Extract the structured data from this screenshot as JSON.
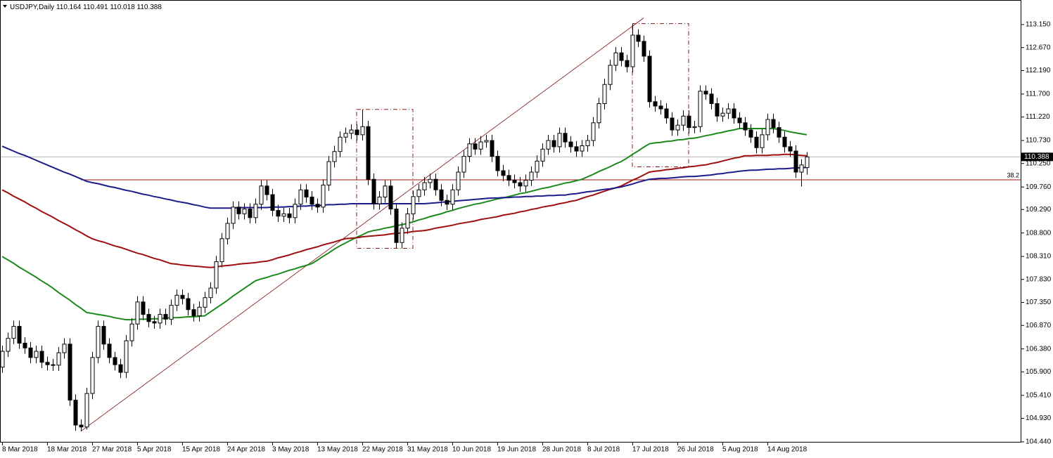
{
  "chart_data": {
    "type": "candlestick",
    "symbol": "USDJPY,Daily",
    "categories": [
      "8 Mar 2018",
      null,
      null,
      null,
      null,
      null,
      null,
      null,
      "18 Mar 2018",
      null,
      null,
      null,
      null,
      null,
      null,
      null,
      "27 Mar 2018",
      null,
      null,
      null,
      null,
      null,
      null,
      null,
      "5 Apr 2018",
      null,
      null,
      null,
      null,
      null,
      null,
      null,
      "15 Apr 2018",
      null,
      null,
      null,
      null,
      null,
      null,
      null,
      "24 Apr 2018",
      null,
      null,
      null,
      null,
      null,
      null,
      null,
      "3 May 2018",
      null,
      null,
      null,
      null,
      null,
      null,
      null,
      "13 May 2018",
      null,
      null,
      null,
      null,
      null,
      null,
      null,
      "22 May 2018",
      null,
      null,
      null,
      null,
      null,
      null,
      null,
      "31 May 2018",
      null,
      null,
      null,
      null,
      null,
      null,
      null,
      "10 Jun 2018",
      null,
      null,
      null,
      null,
      null,
      null,
      null,
      "19 Jun 2018",
      null,
      null,
      null,
      null,
      null,
      null,
      null,
      "28 Jun 2018",
      null,
      null,
      null,
      null,
      null,
      null,
      null,
      "8 Jul 2018",
      null,
      null,
      null,
      null,
      null,
      null,
      null,
      "17 Jul 2018",
      null,
      null,
      null,
      null,
      null,
      null,
      null,
      "26 Jul 2018",
      null,
      null,
      null,
      null,
      null,
      null,
      null,
      "5 Aug 2018",
      null,
      null,
      null,
      null,
      null,
      null,
      null,
      "14 Aug 2018",
      null,
      null,
      null,
      null,
      null,
      null,
      null
    ],
    "open": [
      106.0,
      106.33,
      106.6,
      106.85,
      106.5,
      106.4,
      106.2,
      106.33,
      106.1,
      106.05,
      106.04,
      106.3,
      106.48,
      105.31,
      104.79,
      104.75,
      105.45,
      106.2,
      106.85,
      106.48,
      106.2,
      106.05,
      105.89,
      106.55,
      106.9,
      107.36,
      107.1,
      106.95,
      106.92,
      107.1,
      107.0,
      107.29,
      107.5,
      107.43,
      107.2,
      107.07,
      107.25,
      107.45,
      107.65,
      108.2,
      108.68,
      109.0,
      109.34,
      109.2,
      109.3,
      109.12,
      109.4,
      109.78,
      109.6,
      109.27,
      109.15,
      109.2,
      109.12,
      109.4,
      109.7,
      109.55,
      109.4,
      109.34,
      109.8,
      110.29,
      110.5,
      110.8,
      110.88,
      110.95,
      110.85,
      111.02,
      109.92,
      109.41,
      109.55,
      109.78,
      109.3,
      108.6,
      108.9,
      109.2,
      109.56,
      109.7,
      109.85,
      109.92,
      109.7,
      109.48,
      109.4,
      109.7,
      110.07,
      110.4,
      110.66,
      110.55,
      110.7,
      110.73,
      110.4,
      110.1,
      110.0,
      109.9,
      109.85,
      109.78,
      109.9,
      110.07,
      110.3,
      110.55,
      110.73,
      110.6,
      110.88,
      110.7,
      110.6,
      110.51,
      110.62,
      110.73,
      111.1,
      111.5,
      111.9,
      112.3,
      112.56,
      112.4,
      112.27,
      112.93,
      112.8,
      112.49,
      111.54,
      111.45,
      111.39,
      111.2,
      110.95,
      111.05,
      111.24,
      111.0,
      111.02,
      111.76,
      111.7,
      111.5,
      111.24,
      111.3,
      111.39,
      111.2,
      111.1,
      110.95,
      110.8,
      110.58,
      110.85,
      111.17,
      111.0,
      110.8,
      110.6,
      110.51,
      110.07,
      110.164
    ],
    "high": [
      106.45,
      106.72,
      106.97,
      106.97,
      106.62,
      106.52,
      106.45,
      106.45,
      106.22,
      106.17,
      106.42,
      106.6,
      106.6,
      105.43,
      104.91,
      105.57,
      106.32,
      106.97,
      106.97,
      106.6,
      106.32,
      106.17,
      106.67,
      107.02,
      107.48,
      107.48,
      107.22,
      107.07,
      107.22,
      107.22,
      107.41,
      107.62,
      107.62,
      107.55,
      107.32,
      107.37,
      107.57,
      107.77,
      108.32,
      108.8,
      109.12,
      109.46,
      109.46,
      109.42,
      109.42,
      109.52,
      109.9,
      109.9,
      109.72,
      109.39,
      109.32,
      109.32,
      109.52,
      109.82,
      109.82,
      109.67,
      109.52,
      109.92,
      110.41,
      110.62,
      110.92,
      111.0,
      111.07,
      111.07,
      111.38,
      111.14,
      110.04,
      109.67,
      109.9,
      109.9,
      109.42,
      109.02,
      109.32,
      109.68,
      109.82,
      109.97,
      110.04,
      110.04,
      109.82,
      109.6,
      109.82,
      110.19,
      110.52,
      110.78,
      110.78,
      110.82,
      110.85,
      110.85,
      110.52,
      110.22,
      110.12,
      110.02,
      109.97,
      110.02,
      110.19,
      110.42,
      110.67,
      110.85,
      110.85,
      111.0,
      111.0,
      110.82,
      110.72,
      110.74,
      110.85,
      111.22,
      111.62,
      112.02,
      112.42,
      112.68,
      112.68,
      112.52,
      113.17,
      113.05,
      112.92,
      112.61,
      111.66,
      111.57,
      111.51,
      111.32,
      111.17,
      111.36,
      111.36,
      111.14,
      111.88,
      111.88,
      111.82,
      111.62,
      111.42,
      111.51,
      111.51,
      111.32,
      111.22,
      111.07,
      110.92,
      110.97,
      111.29,
      111.29,
      111.12,
      110.92,
      110.72,
      110.63,
      110.34,
      110.491
    ],
    "low": [
      105.88,
      106.21,
      106.48,
      106.38,
      106.28,
      106.08,
      106.08,
      105.98,
      105.93,
      105.92,
      105.92,
      106.18,
      105.19,
      104.67,
      104.66,
      104.7,
      105.33,
      106.08,
      106.36,
      106.08,
      105.93,
      105.77,
      105.77,
      106.43,
      106.78,
      106.98,
      106.83,
      106.8,
      106.8,
      106.88,
      106.88,
      107.17,
      107.31,
      107.08,
      106.95,
      106.95,
      107.13,
      107.33,
      107.53,
      108.08,
      108.56,
      108.88,
      109.08,
      109.08,
      109.0,
      109.0,
      109.28,
      109.48,
      109.15,
      109.03,
      109.03,
      109.0,
      109.0,
      109.28,
      109.43,
      109.28,
      109.22,
      109.22,
      109.68,
      110.17,
      110.38,
      110.68,
      110.76,
      110.73,
      110.73,
      109.8,
      109.29,
      109.29,
      109.43,
      109.18,
      108.48,
      108.48,
      108.78,
      109.08,
      109.44,
      109.58,
      109.73,
      109.58,
      109.36,
      109.28,
      109.28,
      109.58,
      109.95,
      110.28,
      110.43,
      110.43,
      110.58,
      110.28,
      109.98,
      109.88,
      109.78,
      109.73,
      109.66,
      109.66,
      109.78,
      109.95,
      110.18,
      110.43,
      110.48,
      110.48,
      110.58,
      110.48,
      110.39,
      110.39,
      110.5,
      110.61,
      110.98,
      111.38,
      111.78,
      112.18,
      112.28,
      112.15,
      112.15,
      112.68,
      112.37,
      111.42,
      111.33,
      111.27,
      111.08,
      110.83,
      110.83,
      110.93,
      110.88,
      110.88,
      110.9,
      111.58,
      111.38,
      111.12,
      111.12,
      111.18,
      111.08,
      110.98,
      110.83,
      110.68,
      110.46,
      110.46,
      110.73,
      110.88,
      110.68,
      110.48,
      110.39,
      109.95,
      109.77,
      110.018
    ],
    "close": [
      106.33,
      106.6,
      106.85,
      106.5,
      106.4,
      106.2,
      106.33,
      106.1,
      106.05,
      106.04,
      106.3,
      106.48,
      105.31,
      104.79,
      104.75,
      105.45,
      106.2,
      106.85,
      106.48,
      106.2,
      106.05,
      105.89,
      106.55,
      106.9,
      107.36,
      107.1,
      106.95,
      106.92,
      107.1,
      107.0,
      107.29,
      107.5,
      107.43,
      107.2,
      107.07,
      107.25,
      107.45,
      107.65,
      108.2,
      108.68,
      109.0,
      109.34,
      109.2,
      109.3,
      109.12,
      109.4,
      109.78,
      109.6,
      109.27,
      109.15,
      109.2,
      109.12,
      109.4,
      109.7,
      109.55,
      109.4,
      109.34,
      109.8,
      110.29,
      110.5,
      110.8,
      110.88,
      110.95,
      110.85,
      111.02,
      109.92,
      109.41,
      109.55,
      109.78,
      109.3,
      108.6,
      108.9,
      109.2,
      109.56,
      109.7,
      109.85,
      109.92,
      109.7,
      109.48,
      109.4,
      109.7,
      110.07,
      110.4,
      110.66,
      110.55,
      110.7,
      110.73,
      110.4,
      110.1,
      110.0,
      109.9,
      109.85,
      109.78,
      109.9,
      110.07,
      110.3,
      110.55,
      110.73,
      110.6,
      110.88,
      110.7,
      110.6,
      110.51,
      110.62,
      110.73,
      111.1,
      111.5,
      111.9,
      112.3,
      112.56,
      112.4,
      112.27,
      112.93,
      112.8,
      112.49,
      111.54,
      111.45,
      111.39,
      111.2,
      110.95,
      111.05,
      111.24,
      111.0,
      111.02,
      111.76,
      111.7,
      111.5,
      111.24,
      111.3,
      111.39,
      111.2,
      111.1,
      110.95,
      110.8,
      110.58,
      110.85,
      111.17,
      111.0,
      110.8,
      110.6,
      110.51,
      110.07,
      110.22,
      110.388
    ],
    "series": [
      {
        "color": "#1b8a1b",
        "values": [
          108.31,
          108.24,
          108.17,
          108.09,
          108.02,
          107.95,
          107.88,
          107.8,
          107.73,
          107.65,
          107.56,
          107.48,
          107.4,
          107.31,
          107.23,
          107.14,
          107.12,
          107.1,
          107.08,
          107.06,
          107.03,
          107.01,
          106.99,
          106.99,
          107.0,
          107.0,
          107.0,
          107.01,
          107.01,
          107.02,
          107.03,
          107.03,
          107.04,
          107.05,
          107.05,
          107.06,
          107.07,
          107.15,
          107.23,
          107.31,
          107.39,
          107.48,
          107.56,
          107.64,
          107.72,
          107.8,
          107.84,
          107.87,
          107.91,
          107.94,
          107.98,
          108.02,
          108.05,
          108.09,
          108.12,
          108.16,
          108.23,
          108.31,
          108.38,
          108.46,
          108.53,
          108.59,
          108.65,
          108.71,
          108.76,
          108.82,
          108.85,
          108.87,
          108.9,
          108.92,
          108.95,
          108.97,
          109.0,
          109.03,
          109.07,
          109.1,
          109.14,
          109.17,
          109.2,
          109.24,
          109.27,
          109.31,
          109.34,
          109.37,
          109.4,
          109.42,
          109.45,
          109.48,
          109.51,
          109.53,
          109.56,
          109.59,
          109.62,
          109.64,
          109.67,
          109.7,
          109.73,
          109.75,
          109.78,
          109.81,
          109.84,
          109.86,
          109.89,
          109.92,
          109.97,
          110.02,
          110.08,
          110.13,
          110.18,
          110.24,
          110.29,
          110.36,
          110.44,
          110.51,
          110.59,
          110.66,
          110.68,
          110.69,
          110.71,
          110.72,
          110.74,
          110.75,
          110.77,
          110.78,
          110.8,
          110.83,
          110.85,
          110.88,
          110.9,
          110.93,
          110.95,
          110.98,
          110.98,
          110.98,
          110.98,
          110.98,
          110.98,
          110.98,
          110.96,
          110.94,
          110.91,
          110.89,
          110.87,
          110.85
        ]
      },
      {
        "color": "#9e0f0f",
        "values": [
          109.7,
          109.64,
          109.57,
          109.51,
          109.45,
          109.38,
          109.32,
          109.25,
          109.19,
          109.13,
          109.06,
          109.0,
          108.94,
          108.87,
          108.81,
          108.74,
          108.68,
          108.64,
          108.61,
          108.57,
          108.53,
          108.5,
          108.46,
          108.42,
          108.38,
          108.35,
          108.31,
          108.27,
          108.24,
          108.2,
          108.16,
          108.15,
          108.13,
          108.12,
          108.11,
          108.1,
          108.09,
          108.08,
          108.09,
          108.11,
          108.12,
          108.13,
          108.15,
          108.16,
          108.17,
          108.18,
          108.2,
          108.21,
          108.24,
          108.28,
          108.31,
          108.34,
          108.38,
          108.41,
          108.45,
          108.48,
          108.51,
          108.55,
          108.58,
          108.61,
          108.65,
          108.68,
          108.69,
          108.7,
          108.72,
          108.73,
          108.74,
          108.75,
          108.76,
          108.78,
          108.79,
          108.8,
          108.81,
          108.83,
          108.84,
          108.85,
          108.87,
          108.9,
          108.92,
          108.94,
          108.96,
          108.99,
          109.01,
          109.03,
          109.05,
          109.08,
          109.1,
          109.12,
          109.14,
          109.17,
          109.19,
          109.21,
          109.24,
          109.26,
          109.29,
          109.31,
          109.34,
          109.36,
          109.38,
          109.41,
          109.43,
          109.46,
          109.48,
          109.52,
          109.56,
          109.59,
          109.63,
          109.67,
          109.71,
          109.74,
          109.78,
          109.84,
          109.9,
          109.95,
          110.01,
          110.07,
          110.09,
          110.1,
          110.12,
          110.13,
          110.15,
          110.16,
          110.18,
          110.19,
          110.21,
          110.22,
          110.25,
          110.27,
          110.3,
          110.33,
          110.36,
          110.38,
          110.41,
          110.41,
          110.42,
          110.42,
          110.42,
          110.43,
          110.43,
          110.44,
          110.44,
          110.43,
          110.42,
          110.41
        ]
      },
      {
        "color": "#1c1c8a",
        "values": [
          110.61,
          110.56,
          110.51,
          110.46,
          110.42,
          110.37,
          110.32,
          110.27,
          110.22,
          110.17,
          110.12,
          110.07,
          110.03,
          109.98,
          109.93,
          109.88,
          109.85,
          109.83,
          109.8,
          109.77,
          109.75,
          109.72,
          109.69,
          109.67,
          109.64,
          109.61,
          109.59,
          109.56,
          109.54,
          109.51,
          109.49,
          109.46,
          109.44,
          109.42,
          109.39,
          109.37,
          109.34,
          109.32,
          109.32,
          109.32,
          109.32,
          109.32,
          109.33,
          109.33,
          109.33,
          109.33,
          109.33,
          109.33,
          109.34,
          109.34,
          109.34,
          109.35,
          109.35,
          109.36,
          109.36,
          109.37,
          109.37,
          109.38,
          109.39,
          109.39,
          109.4,
          109.4,
          109.41,
          109.41,
          109.41,
          109.41,
          109.41,
          109.41,
          109.41,
          109.41,
          109.41,
          109.41,
          109.41,
          109.41,
          109.41,
          109.41,
          109.42,
          109.43,
          109.44,
          109.45,
          109.46,
          109.47,
          109.48,
          109.49,
          109.5,
          109.51,
          109.52,
          109.53,
          109.53,
          109.54,
          109.54,
          109.55,
          109.55,
          109.56,
          109.56,
          109.57,
          109.57,
          109.58,
          109.58,
          109.59,
          109.59,
          109.61,
          109.62,
          109.64,
          109.66,
          109.67,
          109.69,
          109.71,
          109.72,
          109.74,
          109.76,
          109.79,
          109.82,
          109.86,
          109.89,
          109.92,
          109.93,
          109.94,
          109.94,
          109.95,
          109.96,
          109.97,
          109.98,
          109.98,
          109.99,
          110.0,
          110.01,
          110.03,
          110.04,
          110.06,
          110.07,
          110.09,
          110.1,
          110.11,
          110.11,
          110.12,
          110.13,
          110.13,
          110.14,
          110.14,
          110.15,
          110.16,
          110.16,
          110.17
        ]
      }
    ],
    "fib_level": {
      "value": 109.91,
      "label": "38.2"
    },
    "ylim": [
      104.425,
      113.663
    ],
    "yticks": [
      {
        "value": 113.15,
        "label": "113.150"
      },
      {
        "value": 112.67,
        "label": "112.670"
      },
      {
        "value": 112.19,
        "label": "112.190"
      },
      {
        "value": 111.7,
        "label": "111.700"
      },
      {
        "value": 111.22,
        "label": "111.220"
      },
      {
        "value": 110.73,
        "label": "110.730"
      },
      {
        "value": 110.25,
        "label": "110.250"
      },
      {
        "value": 109.76,
        "label": "109.760"
      },
      {
        "value": 109.29,
        "label": "109.290"
      },
      {
        "value": 108.8,
        "label": "108.800"
      },
      {
        "value": 108.31,
        "label": "108.310"
      },
      {
        "value": 107.83,
        "label": "107.830"
      },
      {
        "value": 107.35,
        "label": "107.350"
      },
      {
        "value": 106.87,
        "label": "106.870"
      },
      {
        "value": 106.38,
        "label": "106.380"
      },
      {
        "value": 105.9,
        "label": "105.900"
      },
      {
        "value": 105.41,
        "label": "105.410"
      },
      {
        "value": 104.93,
        "label": "104.930"
      },
      {
        "value": 104.44,
        "label": "104.440"
      }
    ]
  }
}
